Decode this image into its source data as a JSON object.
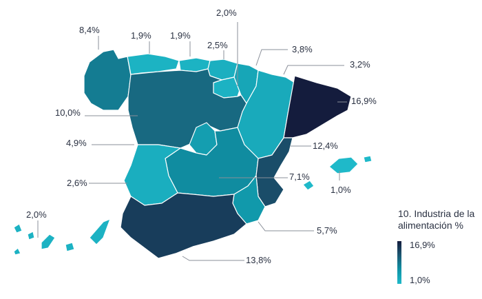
{
  "legend": {
    "title": "10. Industria de la alimentación %",
    "max_label": "16,9%",
    "min_label": "1,0%",
    "max_value": 16.9,
    "min_value": 1.0,
    "gradient_dark": "#141c3d",
    "gradient_light": "#1fb9c9"
  },
  "regions": [
    {
      "id": "galicia",
      "value": "8,4%",
      "pct": 8.4
    },
    {
      "id": "asturias",
      "value": "1,9%",
      "pct": 1.9
    },
    {
      "id": "cantabria",
      "value": "1,9%",
      "pct": 1.9
    },
    {
      "id": "pais-vasco",
      "value": "2,5%",
      "pct": 2.5
    },
    {
      "id": "la-rioja",
      "value": "2,0%",
      "pct": 2.0
    },
    {
      "id": "navarra",
      "value": "3,8%",
      "pct": 3.8
    },
    {
      "id": "aragon",
      "value": "3,2%",
      "pct": 3.2
    },
    {
      "id": "cataluna",
      "value": "16,9%",
      "pct": 16.9
    },
    {
      "id": "castilla-leon",
      "value": "10,0%",
      "pct": 10.0
    },
    {
      "id": "madrid",
      "value": "4,9%",
      "pct": 4.9
    },
    {
      "id": "comunidad-valenciana",
      "value": "12,4%",
      "pct": 12.4
    },
    {
      "id": "castilla-la-mancha",
      "value": "7,1%",
      "pct": 7.1
    },
    {
      "id": "baleares",
      "value": "1,0%",
      "pct": 1.0
    },
    {
      "id": "extremadura",
      "value": "2,6%",
      "pct": 2.6
    },
    {
      "id": "murcia",
      "value": "5,7%",
      "pct": 5.7
    },
    {
      "id": "andalucia",
      "value": "13,8%",
      "pct": 13.8
    },
    {
      "id": "canarias",
      "value": "2,0%",
      "pct": 2.0
    }
  ]
}
